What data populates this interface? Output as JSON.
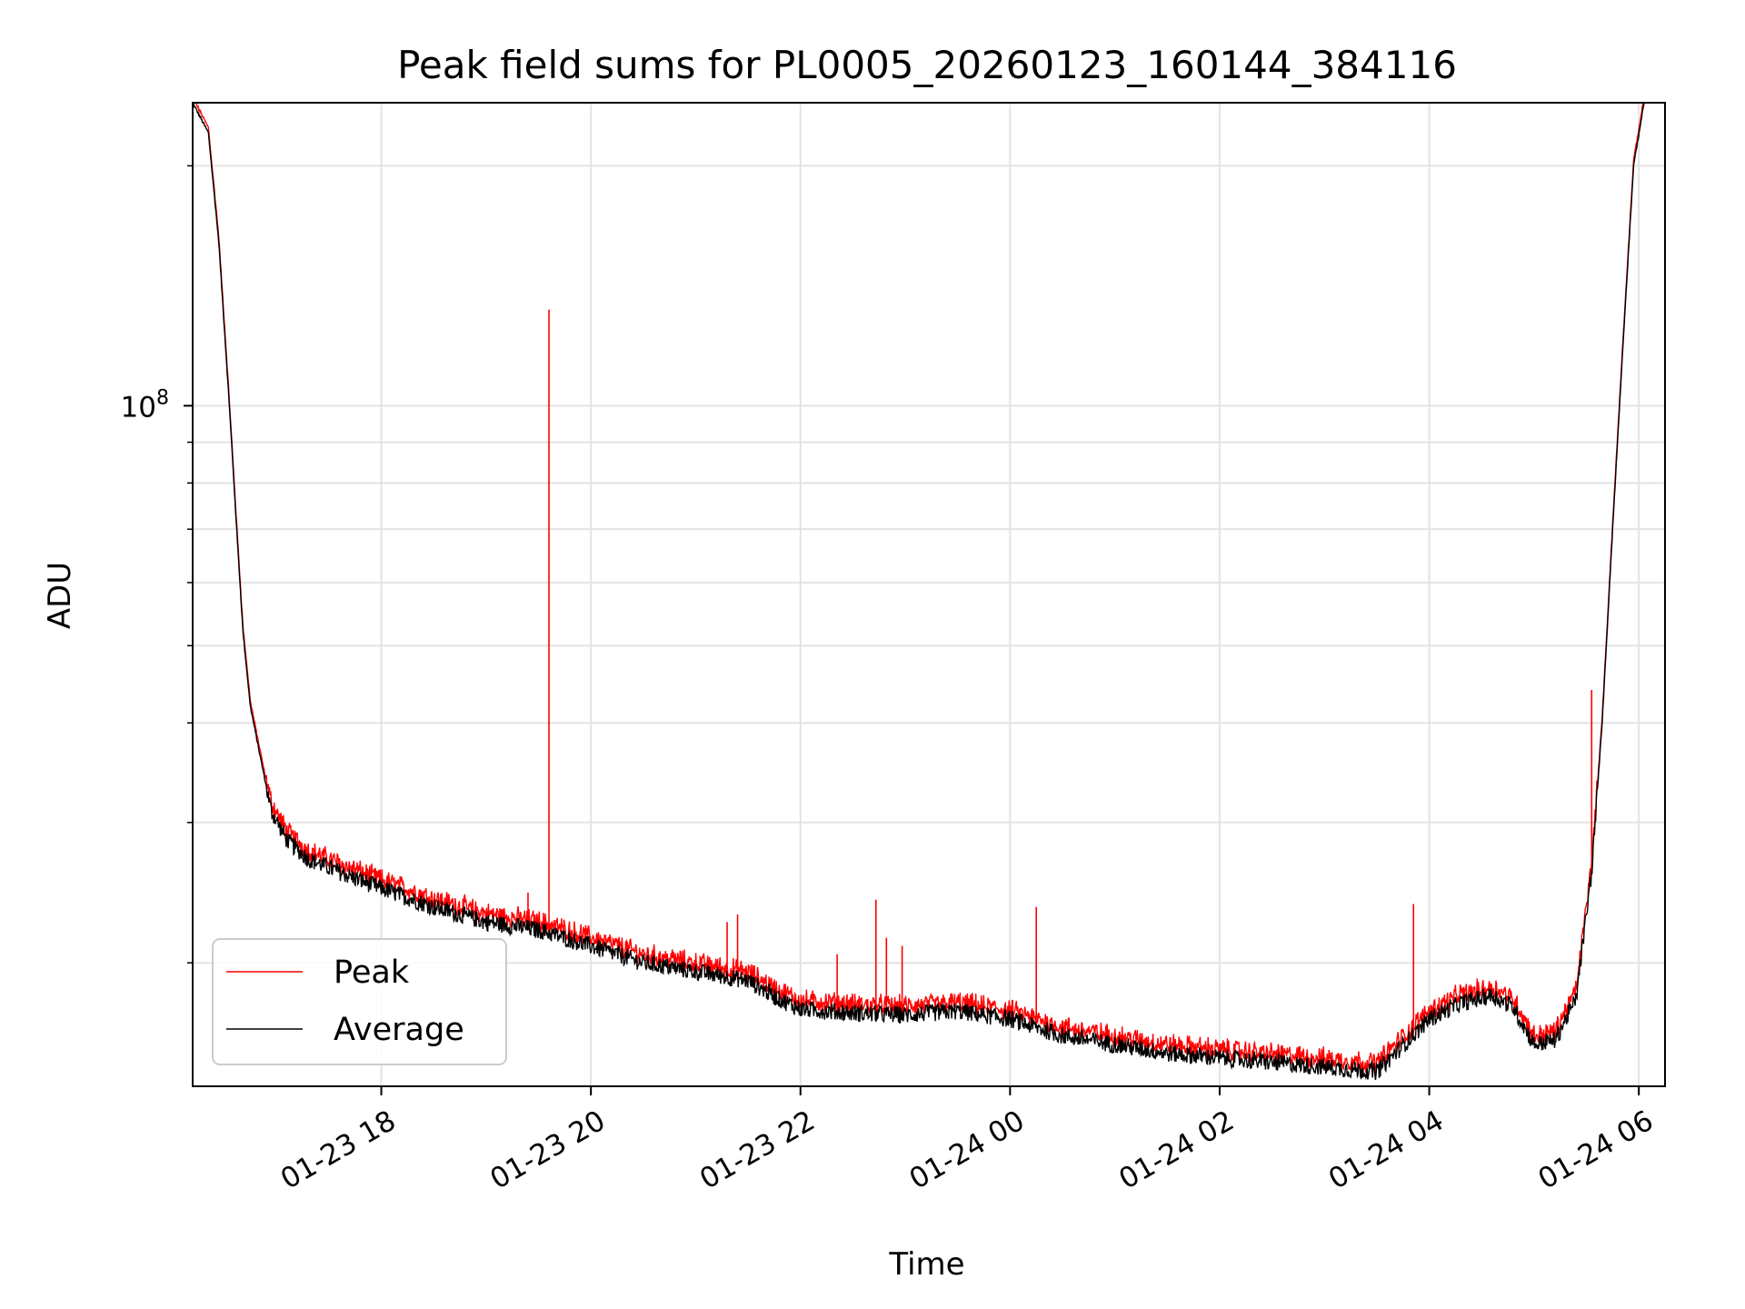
{
  "chart_data": {
    "type": "line",
    "title": "Peak field sums for PL0005_20260123_160144_384116",
    "xlabel": "Time",
    "ylabel": "ADU",
    "yscale": "log",
    "ylim": [
      14000000,
      240000000
    ],
    "xlim": [
      16.2,
      30.25
    ],
    "grid": true,
    "legend_position": "lower-left",
    "x_ticks": [
      {
        "value": 18,
        "label": "01-23 18"
      },
      {
        "value": 20,
        "label": "01-23 20"
      },
      {
        "value": 22,
        "label": "01-23 22"
      },
      {
        "value": 24,
        "label": "01-24 00"
      },
      {
        "value": 26,
        "label": "01-24 02"
      },
      {
        "value": 28,
        "label": "01-24 04"
      },
      {
        "value": 30,
        "label": "01-24 06"
      }
    ],
    "y_major_ticks": [
      {
        "value": 100000000,
        "base": "10",
        "exponent": "8"
      }
    ],
    "y_minor_ticks": [
      20000000,
      30000000,
      40000000,
      50000000,
      60000000,
      70000000,
      80000000,
      90000000,
      200000000
    ],
    "x_unit": "hours since 2026-01-23 00:00",
    "series": [
      {
        "name": "Average",
        "color": "#000000",
        "points": [
          [
            16.2,
            240000000
          ],
          [
            16.35,
            220000000
          ],
          [
            16.45,
            160000000
          ],
          [
            16.55,
            100000000
          ],
          [
            16.62,
            70000000
          ],
          [
            16.68,
            52000000
          ],
          [
            16.75,
            42000000
          ],
          [
            16.85,
            36000000
          ],
          [
            16.95,
            31000000
          ],
          [
            17.1,
            28500000
          ],
          [
            17.3,
            27000000
          ],
          [
            17.6,
            26000000
          ],
          [
            18.0,
            24800000
          ],
          [
            18.5,
            23500000
          ],
          [
            19.0,
            22500000
          ],
          [
            19.5,
            22000000
          ],
          [
            20.0,
            21000000
          ],
          [
            20.5,
            20000000
          ],
          [
            21.0,
            19500000
          ],
          [
            21.5,
            19000000
          ],
          [
            21.8,
            18000000
          ],
          [
            22.0,
            17500000
          ],
          [
            22.5,
            17300000
          ],
          [
            23.0,
            17200000
          ],
          [
            23.5,
            17400000
          ],
          [
            24.0,
            17000000
          ],
          [
            24.5,
            16200000
          ],
          [
            25.0,
            15800000
          ],
          [
            25.5,
            15400000
          ],
          [
            26.0,
            15200000
          ],
          [
            26.5,
            15000000
          ],
          [
            27.0,
            14800000
          ],
          [
            27.5,
            14600000
          ],
          [
            27.8,
            16000000
          ],
          [
            28.0,
            17000000
          ],
          [
            28.3,
            17800000
          ],
          [
            28.6,
            18200000
          ],
          [
            28.8,
            17600000
          ],
          [
            29.0,
            15800000
          ],
          [
            29.2,
            16000000
          ],
          [
            29.4,
            18000000
          ],
          [
            29.55,
            26000000
          ],
          [
            29.65,
            40000000
          ],
          [
            29.75,
            70000000
          ],
          [
            29.85,
            120000000
          ],
          [
            29.95,
            200000000
          ],
          [
            30.05,
            240000000
          ]
        ]
      },
      {
        "name": "Peak",
        "color": "#ff0000",
        "spikes": [
          [
            19.4,
            24500000
          ],
          [
            19.6,
            132000000
          ],
          [
            21.3,
            22500000
          ],
          [
            21.4,
            23000000
          ],
          [
            22.35,
            20500000
          ],
          [
            22.72,
            24000000
          ],
          [
            22.82,
            21500000
          ],
          [
            22.97,
            21000000
          ],
          [
            24.25,
            23500000
          ],
          [
            27.85,
            23700000
          ],
          [
            29.55,
            44000000
          ]
        ]
      }
    ]
  }
}
